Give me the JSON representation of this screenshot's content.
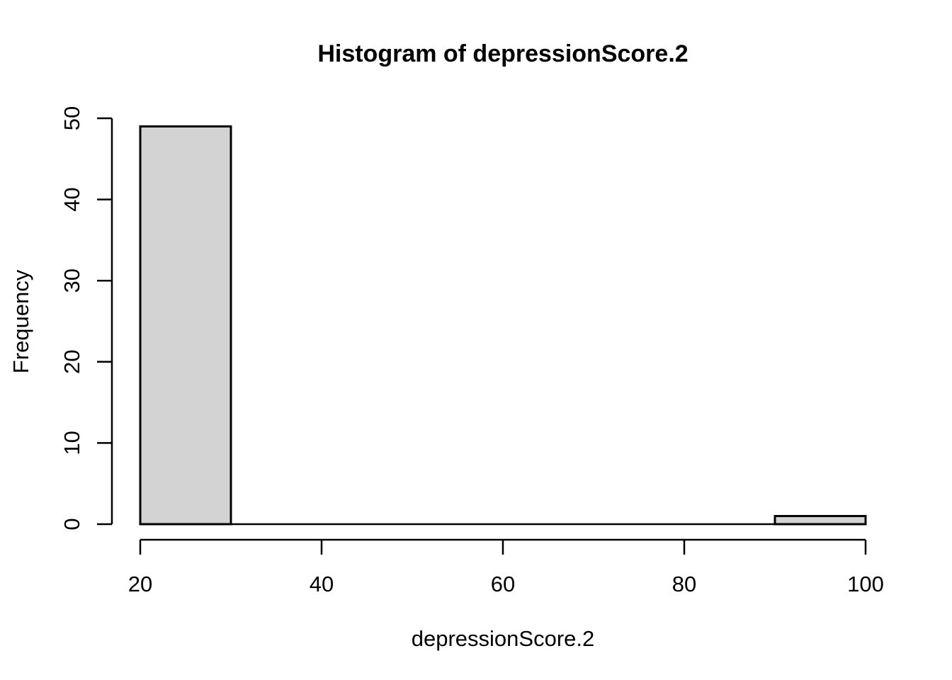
{
  "chart_data": {
    "type": "bar",
    "subtype": "histogram",
    "title": "Histogram of depressionScore.2",
    "xlabel": "depressionScore.2",
    "ylabel": "Frequency",
    "bin_edges": [
      20,
      30,
      40,
      50,
      60,
      70,
      80,
      90,
      100
    ],
    "counts": [
      49,
      0,
      0,
      0,
      0,
      0,
      0,
      1
    ],
    "x_ticks": [
      20,
      40,
      60,
      80,
      100
    ],
    "y_ticks": [
      0,
      10,
      20,
      30,
      40,
      50
    ],
    "xlim": [
      20,
      100
    ],
    "ylim": [
      0,
      50
    ],
    "grid": false,
    "legend": null,
    "colors": {
      "bar_fill": "#d3d3d3",
      "bar_stroke": "#000000",
      "axis": "#000000",
      "background": "#ffffff"
    }
  }
}
